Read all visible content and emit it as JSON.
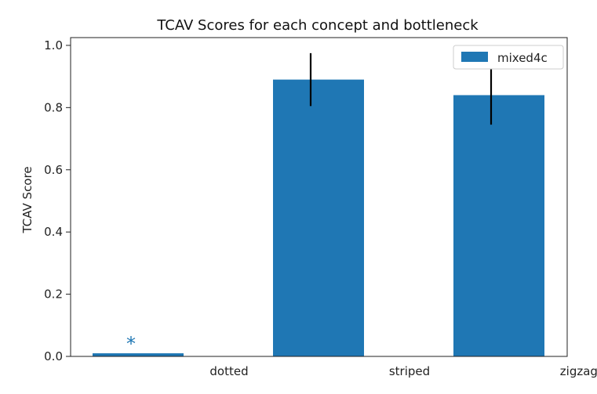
{
  "chart_data": {
    "type": "bar",
    "title": "TCAV Scores for each concept and bottleneck",
    "xlabel": "",
    "ylabel": "TCAV Score",
    "ylim": [
      0,
      1.0
    ],
    "yticks": [
      "0.0",
      "0.2",
      "0.4",
      "0.6",
      "0.8",
      "1.0"
    ],
    "categories": [
      "dotted",
      "striped",
      "zigzagged"
    ],
    "series": [
      {
        "name": "mixed4c",
        "values": [
          0.01,
          0.89,
          0.84
        ],
        "errors": [
          0,
          0.085,
          0.095
        ]
      }
    ],
    "annotations": [
      {
        "category": "dotted",
        "text": "*"
      }
    ],
    "legend": {
      "position": "top-right"
    },
    "grid": false,
    "colors": {
      "bar": "#1f77b4",
      "error": "#000000",
      "annotation": "#1f77b4"
    }
  }
}
